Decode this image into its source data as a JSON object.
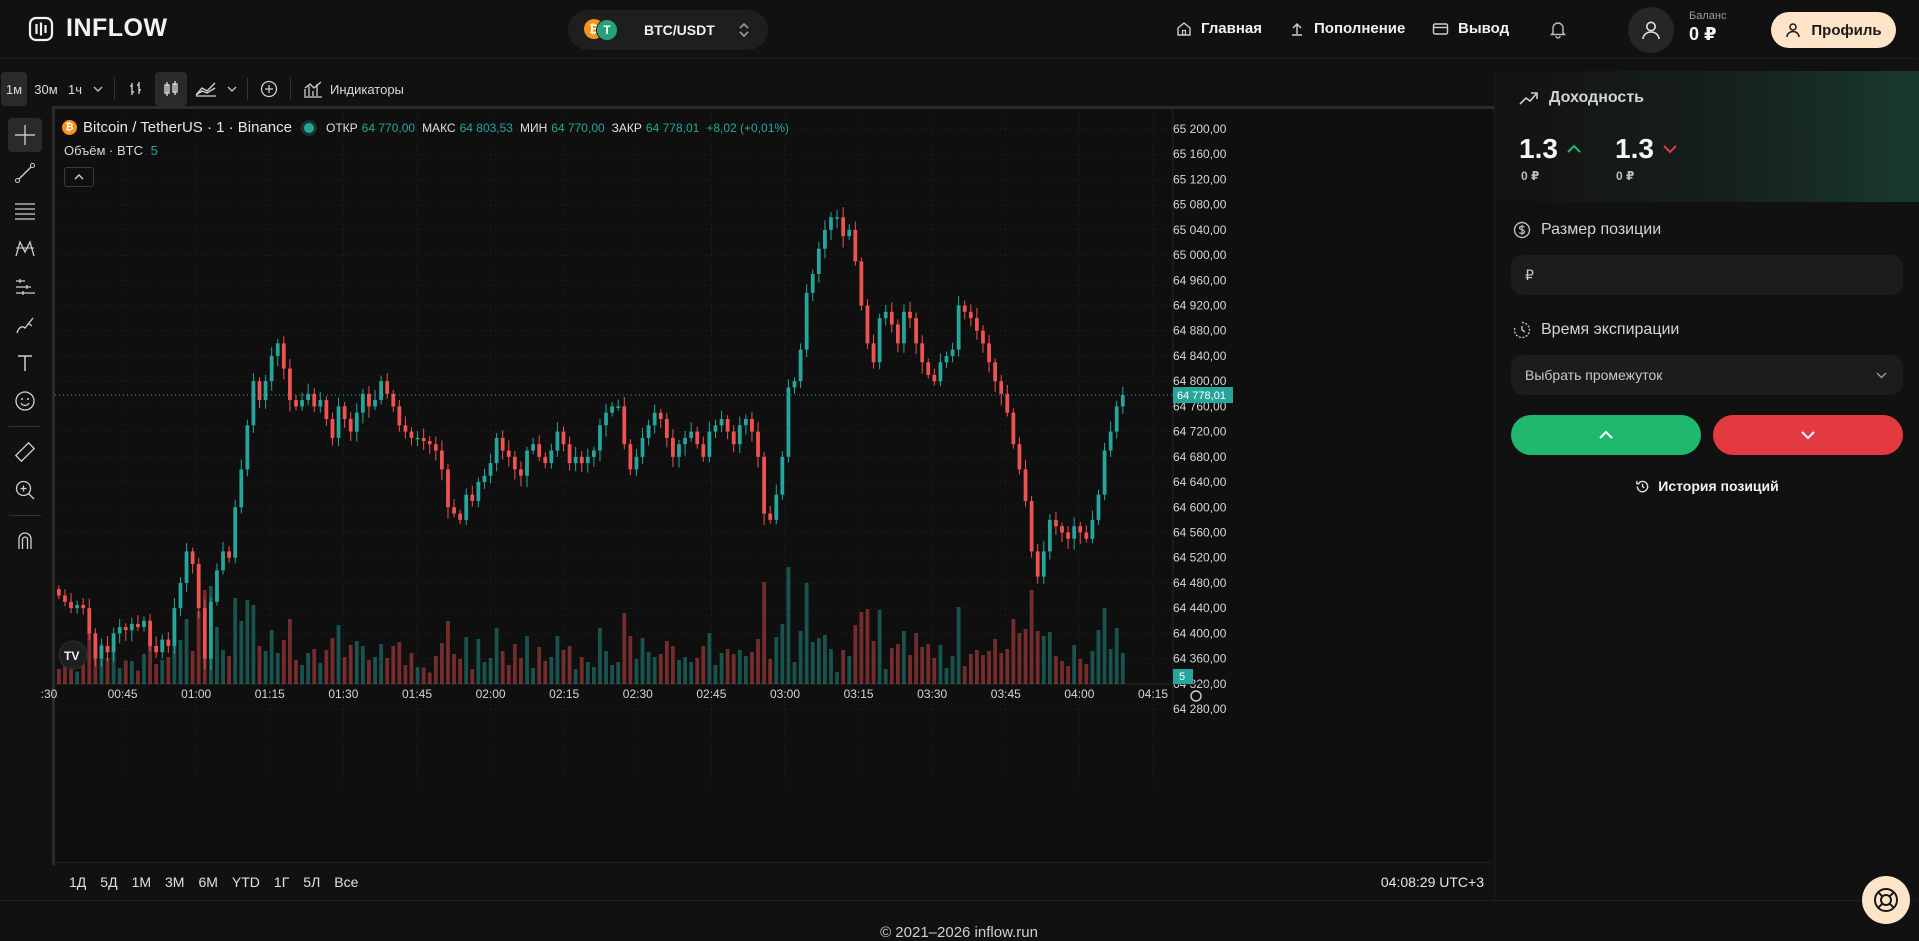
{
  "header": {
    "brand": "INFLOW",
    "pair": "BTC/USDT",
    "nav": [
      {
        "label": "Главная",
        "icon": "home-icon"
      },
      {
        "label": "Пополнение",
        "icon": "upload-icon"
      },
      {
        "label": "Вывод",
        "icon": "wallet-icon"
      }
    ],
    "balance_label": "Баланс",
    "balance_value": "0 ₽",
    "profile_label": "Профиль"
  },
  "toolbar": {
    "intervals": [
      "1м",
      "30м",
      "1ч"
    ],
    "indicators_label": "Индикаторы"
  },
  "chart": {
    "symbol": "Bitcoin / TetherUS · 1 · Binance",
    "ohlc": [
      {
        "k": "ОТКР",
        "v": "64 770,00"
      },
      {
        "k": "МАКС",
        "v": "64 803,53"
      },
      {
        "k": "МИН",
        "v": "64 770,00"
      },
      {
        "k": "ЗАКР",
        "v": "64 778,01"
      },
      {
        "k": "",
        "v": "+8,02 (+0,01%)"
      }
    ],
    "volume_label": "Объём · BTC",
    "volume_value": "5",
    "last_price": "64 778,01",
    "volume_badge": "5",
    "price_ticks": [
      "65 200,00",
      "65 160,00",
      "65 120,00",
      "65 080,00",
      "65 040,00",
      "65 000,00",
      "64 960,00",
      "64 920,00",
      "64 880,00",
      "64 840,00",
      "64 800,00",
      "64 760,00",
      "64 720,00",
      "64 680,00",
      "64 640,00",
      "64 600,00",
      "64 560,00",
      "64 520,00",
      "64 480,00",
      "64 440,00",
      "64 400,00",
      "64 360,00",
      "64 320,00",
      "64 280,00"
    ],
    "time_ticks": [
      ":30",
      "00:45",
      "01:00",
      "01:15",
      "01:30",
      "01:45",
      "02:00",
      "02:15",
      "02:30",
      "02:45",
      "03:00",
      "03:15",
      "03:30",
      "03:45",
      "04:00",
      "04:15"
    ],
    "ranges": [
      "1Д",
      "5Д",
      "1М",
      "3М",
      "6М",
      "YTD",
      "1Г",
      "5Л",
      "Все"
    ],
    "clock": "04:08:29 UTC+3",
    "colors": {
      "up": "#26a69a",
      "down": "#ef5350"
    }
  },
  "chart_data": {
    "type": "candlestick",
    "ylim": [
      64280,
      65200
    ],
    "close": [
      64460,
      64450,
      64440,
      64445,
      64440,
      64400,
      64360,
      64380,
      64370,
      64400,
      64410,
      64405,
      64415,
      64410,
      64420,
      64380,
      64370,
      64390,
      64380,
      64440,
      64480,
      64530,
      64510,
      64440,
      64360,
      64450,
      64500,
      64530,
      64520,
      64600,
      64660,
      64730,
      64800,
      64770,
      64800,
      64840,
      64860,
      64820,
      64770,
      64760,
      64770,
      64780,
      64760,
      64770,
      64740,
      64710,
      64760,
      64740,
      64720,
      64750,
      64780,
      64760,
      64770,
      64800,
      64780,
      64760,
      64730,
      64720,
      64710,
      64710,
      64705,
      64700,
      64690,
      64660,
      64600,
      64590,
      64580,
      64620,
      64610,
      64640,
      64650,
      64670,
      64710,
      64690,
      64680,
      64660,
      64650,
      64690,
      64700,
      64680,
      64670,
      64690,
      64720,
      64700,
      64670,
      64680,
      64670,
      64680,
      64690,
      64730,
      64750,
      64760,
      64760,
      64700,
      64660,
      64680,
      64710,
      64730,
      64750,
      64740,
      64710,
      64680,
      64700,
      64710,
      64720,
      64700,
      64680,
      64720,
      64730,
      64740,
      64720,
      64700,
      64730,
      64740,
      64720,
      64680,
      64590,
      64580,
      64620,
      64680,
      64790,
      64800,
      64850,
      64940,
      64970,
      65010,
      65040,
      65060,
      65060,
      65030,
      65040,
      64990,
      64920,
      64860,
      64830,
      64900,
      64910,
      64890,
      64860,
      64910,
      64900,
      64860,
      64830,
      64810,
      64800,
      64830,
      64840,
      64850,
      64920,
      64910,
      64900,
      64880,
      64860,
      64830,
      64800,
      64780,
      64750,
      64700,
      64660,
      64610,
      64530,
      64490,
      64530,
      64580,
      64570,
      64560,
      64550,
      64570,
      64560,
      64550,
      64580,
      64620,
      64690,
      64720,
      64760,
      64778
    ],
    "volume_scale": "relative",
    "volume_note": "volume bars coloured by candle direction"
  },
  "panel": {
    "yield_title": "Доходность",
    "yield_up": "1.3",
    "yield_up_sub": "0 ₽",
    "yield_down": "1.3",
    "yield_down_sub": "0 ₽",
    "size_title": "Размер позиции",
    "size_placeholder": "₽",
    "expiry_title": "Время экспирации",
    "expiry_select": "Выбрать промежуток",
    "history_label": "История позиций"
  },
  "footer": {
    "text": "© 2021–2026 inflow.run"
  }
}
